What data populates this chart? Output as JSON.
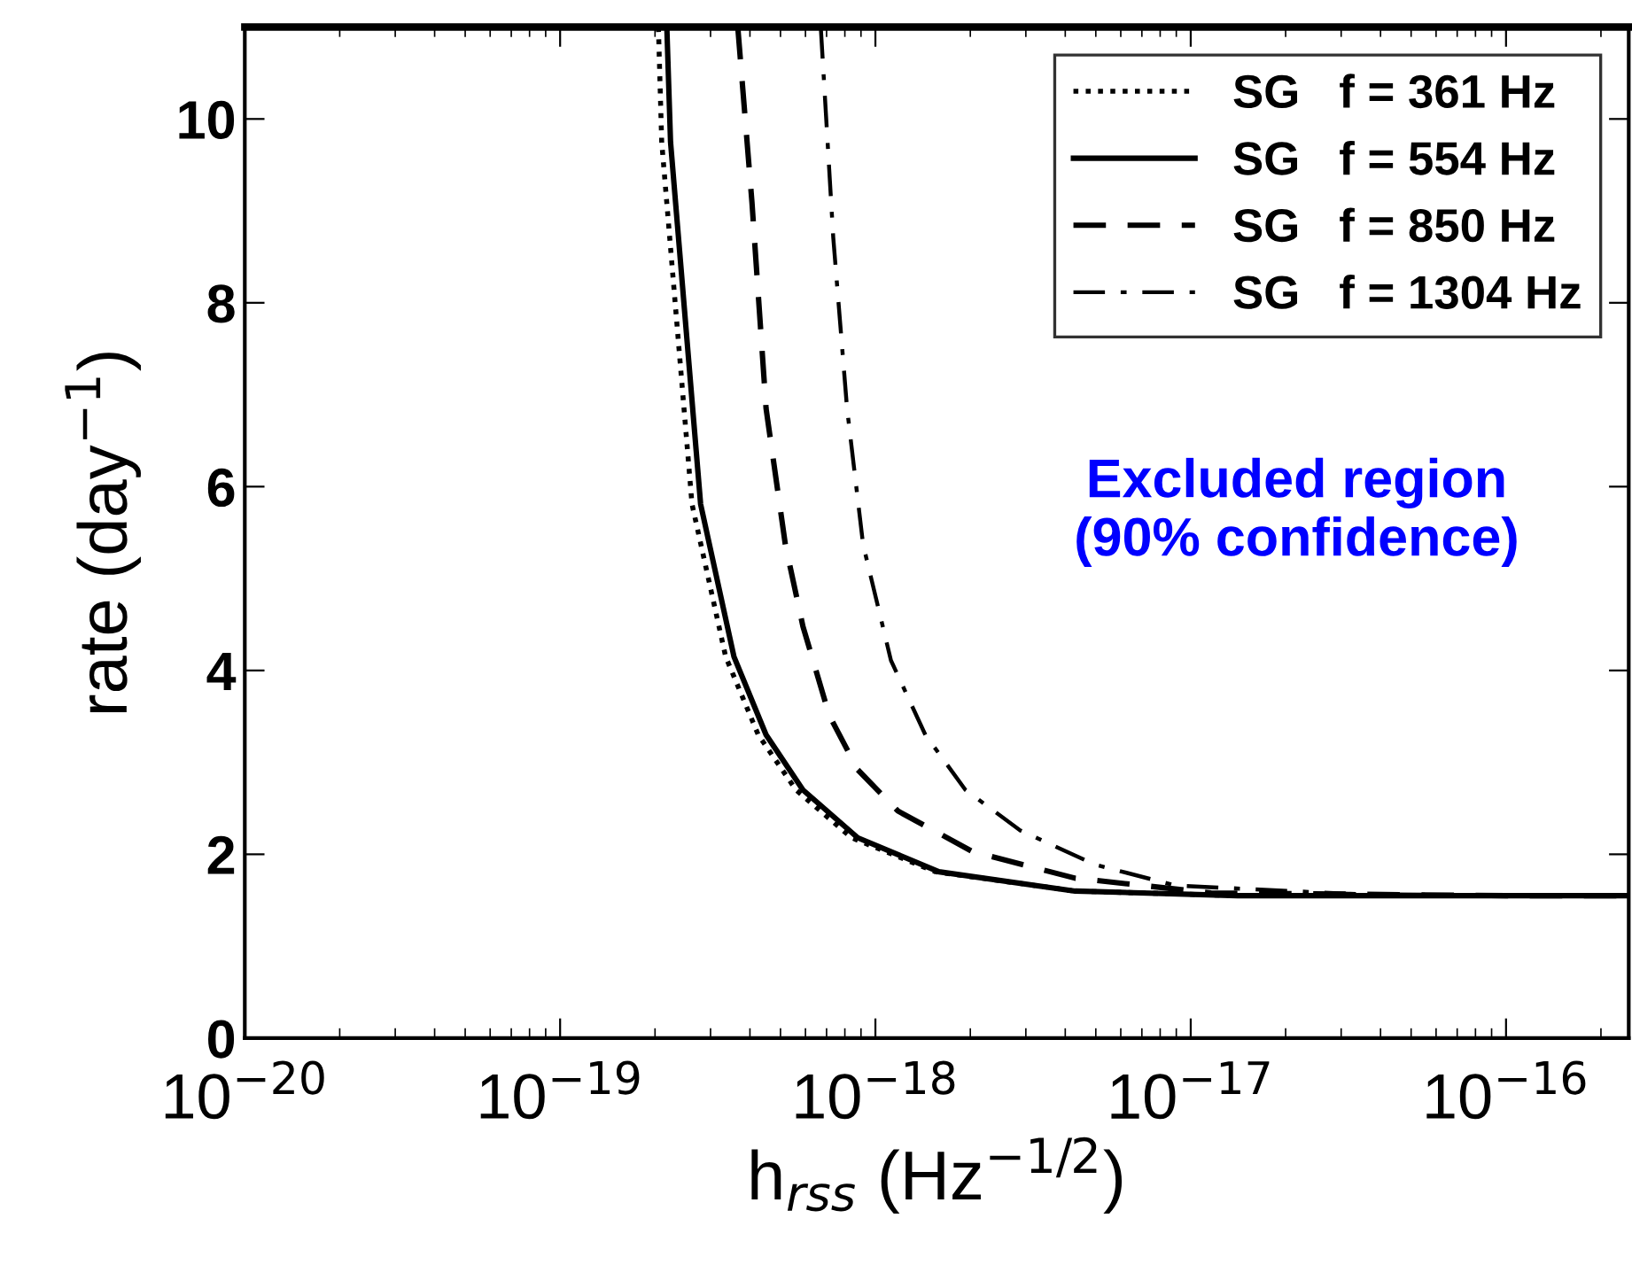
{
  "chart_data": {
    "type": "line",
    "xlabel": "h$_{rss}$ (Hz$^{−1/2}$)",
    "ylabel": "rate (day$^{−1}$)",
    "log": "x",
    "xlim": [
      1e-20,
      2.45e-16
    ],
    "ylim": [
      0,
      11
    ],
    "xticks": [
      {
        "value": 1e-20,
        "label": "10$^{−20}$"
      },
      {
        "value": 1e-19,
        "label": "10$^{−19}$"
      },
      {
        "value": 1e-18,
        "label": "10$^{−18}$"
      },
      {
        "value": 1e-17,
        "label": "10$^{−17}$"
      },
      {
        "value": 1e-16,
        "label": "10$^{−16}$"
      }
    ],
    "yticks": [
      0,
      2,
      4,
      6,
      8,
      10
    ],
    "grid": false,
    "legend": "top right",
    "marker": "none",
    "annotations": [
      "Excluded region\n(90% confidence)"
    ],
    "series": [
      {
        "name": "SG   f = 361 Hz",
        "color": "#000000",
        "line_style": "dotted",
        "x": [
          2.05e-19,
          2.1e-19,
          2.62e-19,
          3.35e-19,
          4.25e-19,
          5.6e-19,
          8.4e-19,
          1.55e-18,
          4.3e-18,
          1.41e-17,
          1e-16,
          2.45e-16
        ],
        "values": [
          11,
          9.75,
          5.81,
          4.15,
          3.3,
          2.7,
          2.18,
          1.81,
          1.6,
          1.55,
          1.55,
          1.55
        ]
      },
      {
        "name": "SG   f = 554 Hz",
        "color": "#000000",
        "line_style": "solid",
        "x": [
          2.18e-19,
          2.24e-19,
          2.79e-19,
          3.56e-19,
          4.5e-19,
          5.89e-19,
          8.79e-19,
          1.59e-18,
          4.3e-18,
          1.41e-17,
          1e-16,
          2.45e-16
        ],
        "values": [
          11,
          9.75,
          5.81,
          4.15,
          3.3,
          2.7,
          2.18,
          1.81,
          1.6,
          1.55,
          1.55,
          1.55
        ]
      },
      {
        "name": "SG   f = 850 Hz",
        "color": "#000000",
        "line_style": "dashed",
        "x": [
          3.66e-19,
          4.06e-19,
          4.5e-19,
          5.18e-19,
          5.89e-19,
          7.14e-19,
          8.79e-19,
          1.18e-18,
          2.03e-18,
          4.3e-18,
          1.16e-17,
          1e-16,
          2.45e-16
        ],
        "values": [
          11,
          9.09,
          6.85,
          5.37,
          4.48,
          3.51,
          2.92,
          2.47,
          2.03,
          1.74,
          1.58,
          1.55,
          1.55
        ]
      },
      {
        "name": "SG   f = 1304 Hz",
        "color": "#000000",
        "line_style": "dashdot",
        "x": [
          6.71e-19,
          7.35e-19,
          8.13e-19,
          9.14e-19,
          1.12e-18,
          1.44e-18,
          1.93e-18,
          2.88e-18,
          4.95e-18,
          8.95e-18,
          3.16e-17,
          1e-16,
          2.45e-16
        ],
        "values": [
          11,
          8.71,
          6.85,
          5.37,
          4.11,
          3.3,
          2.7,
          2.26,
          1.89,
          1.66,
          1.57,
          1.55,
          1.55
        ]
      }
    ]
  }
}
